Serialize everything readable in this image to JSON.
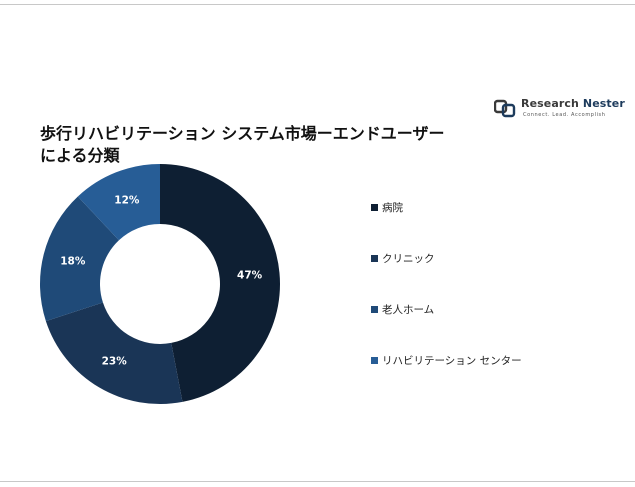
{
  "logo": {
    "name_part1": "Research",
    "name_part2": "Nester",
    "tagline": "Connect. Lead. Accomplish"
  },
  "title": {
    "line1": "歩行リハビリテーション システム市場ーエンドユーザー",
    "line2": "による分類"
  },
  "colors": {
    "hospital": "#0e1f33",
    "clinic": "#1a3556",
    "elderly_home": "#1f4a78",
    "rehab_center": "#275d96"
  },
  "chart_data": {
    "type": "pie",
    "donut": true,
    "categories": [
      "病院",
      "クリニック",
      "老人ホーム",
      "リハビリテーション センター"
    ],
    "values": [
      47,
      23,
      18,
      12
    ],
    "value_labels": [
      "47%",
      "23%",
      "18%",
      "12%"
    ],
    "legend_position": "right"
  }
}
